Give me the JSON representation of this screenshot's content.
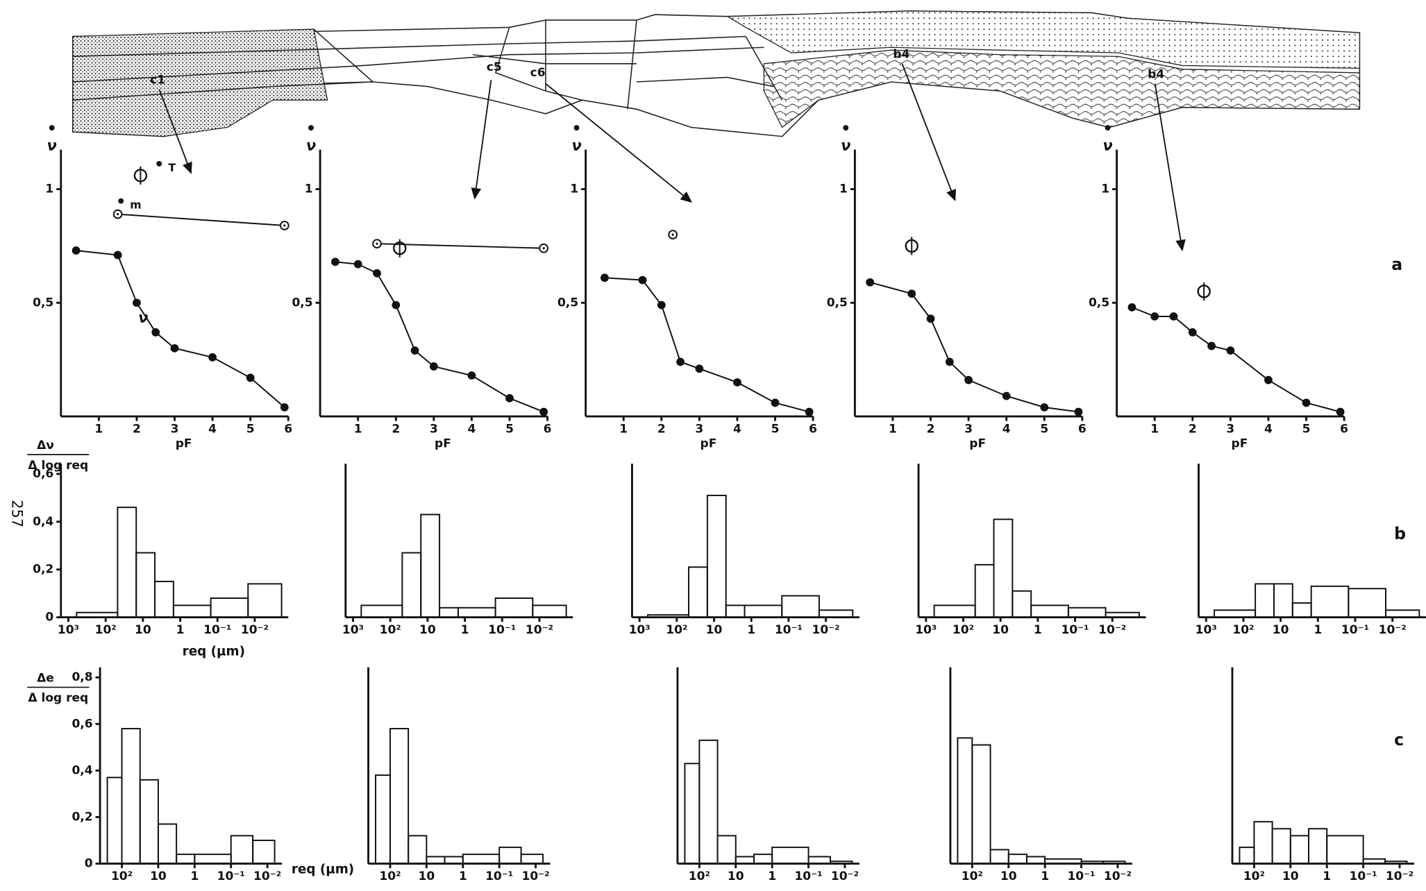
{
  "profile": {
    "labels": [
      "c1",
      "c5",
      "c6",
      "b4",
      "b4"
    ]
  },
  "panel_letters": [
    "a",
    "b",
    "c"
  ],
  "page_number": "257",
  "chart_data": [
    {
      "type": "line",
      "ylabel": "ν",
      "xlabel": "pF",
      "xlim": [
        0,
        6
      ],
      "ylim": [
        0,
        1.15
      ],
      "xticks": [
        1,
        2,
        3,
        4,
        5,
        6
      ],
      "yticks": [
        {
          "value": 0.5,
          "label": "0,5"
        },
        1
      ],
      "series": [
        {
          "x": [
            0.4,
            1.5,
            2,
            2.5,
            3,
            4,
            5,
            5.9
          ],
          "values": [
            0.73,
            0.71,
            0.5,
            0.37,
            0.3,
            0.26,
            0.17,
            0.04
          ],
          "color": "#111",
          "marker": "filled",
          "connected": true
        },
        {
          "x": [
            1.5,
            5.9
          ],
          "values": [
            0.89,
            0.84
          ],
          "color": "#111",
          "marker": "open",
          "connected": true
        },
        {
          "x": [
            2.1
          ],
          "values": [
            1.06
          ],
          "color": "#111",
          "marker": "large-open",
          "connected": false
        }
      ],
      "annotations": [
        "ν",
        "T",
        "m"
      ]
    },
    {
      "type": "line",
      "ylabel": "ν",
      "xlabel": "pF",
      "xlim": [
        0,
        6
      ],
      "ylim": [
        0,
        1.15
      ],
      "xticks": [
        1,
        2,
        3,
        4,
        5,
        6
      ],
      "yticks": [
        {
          "value": 0.5,
          "label": "0,5"
        },
        1
      ],
      "series": [
        {
          "x": [
            0.4,
            1,
            1.5,
            2,
            2.5,
            3,
            4,
            5,
            5.9
          ],
          "values": [
            0.68,
            0.67,
            0.63,
            0.49,
            0.29,
            0.22,
            0.18,
            0.08,
            0.02
          ],
          "color": "#111",
          "marker": "filled",
          "connected": true
        },
        {
          "x": [
            1.5,
            5.9
          ],
          "values": [
            0.76,
            0.74
          ],
          "color": "#111",
          "marker": "open",
          "connected": true
        },
        {
          "x": [
            2.1
          ],
          "values": [
            0.74
          ],
          "color": "#111",
          "marker": "large-open",
          "connected": false
        }
      ]
    },
    {
      "type": "line",
      "ylabel": "ν",
      "xlabel": "pF",
      "xlim": [
        0,
        6
      ],
      "ylim": [
        0,
        1.15
      ],
      "xticks": [
        1,
        2,
        3,
        4,
        5,
        6
      ],
      "yticks": [
        {
          "value": 0.5,
          "label": "0,5"
        },
        1
      ],
      "series": [
        {
          "x": [
            0.5,
            1.5,
            2,
            2.5,
            3,
            4,
            5,
            5.9
          ],
          "values": [
            0.61,
            0.6,
            0.49,
            0.24,
            0.21,
            0.15,
            0.06,
            0.02
          ],
          "color": "#111",
          "marker": "filled",
          "connected": true
        },
        {
          "x": [
            2.3
          ],
          "values": [
            0.8
          ],
          "color": "#111",
          "marker": "open",
          "connected": false
        }
      ]
    },
    {
      "type": "line",
      "ylabel": "ν",
      "xlabel": "pF",
      "xlim": [
        0,
        6
      ],
      "ylim": [
        0,
        1.15
      ],
      "xticks": [
        1,
        2,
        3,
        4,
        5,
        6
      ],
      "yticks": [
        {
          "value": 0.5,
          "label": "0,5"
        },
        1
      ],
      "series": [
        {
          "x": [
            0.4,
            1.5,
            2,
            2.5,
            3,
            4,
            5,
            5.9
          ],
          "values": [
            0.59,
            0.54,
            0.43,
            0.24,
            0.16,
            0.09,
            0.04,
            0.02
          ],
          "color": "#111",
          "marker": "filled",
          "connected": true
        },
        {
          "x": [
            1.5
          ],
          "values": [
            0.75
          ],
          "color": "#111",
          "marker": "large-open",
          "connected": false
        }
      ]
    },
    {
      "type": "line",
      "ylabel": "ν",
      "xlabel": "pF",
      "xlim": [
        0,
        6
      ],
      "ylim": [
        0,
        1.15
      ],
      "xticks": [
        1,
        2,
        3,
        4,
        5,
        6
      ],
      "yticks": [
        {
          "value": 0.5,
          "label": "0,5"
        },
        1
      ],
      "series": [
        {
          "x": [
            0.4,
            1,
            1.5,
            2,
            2.5,
            3,
            4,
            5,
            5.9
          ],
          "values": [
            0.48,
            0.44,
            0.44,
            0.37,
            0.31,
            0.29,
            0.16,
            0.06,
            0.02
          ],
          "color": "#111",
          "marker": "filled",
          "connected": true
        },
        {
          "x": [
            2.3
          ],
          "values": [
            0.55
          ],
          "color": "#111",
          "marker": "large-open",
          "connected": false
        }
      ]
    },
    {
      "type": "histogram",
      "ylabel": [
        "Δν",
        "Δ log req"
      ],
      "xlabel": "req (µm)",
      "xlim": [
        3.2,
        -2.9
      ],
      "ylim": [
        0,
        0.62
      ],
      "xticks": [
        {
          "value": 3,
          "label": "10³"
        },
        {
          "value": 2,
          "label": "10²"
        },
        {
          "value": 1,
          "label": "10"
        },
        {
          "value": 0,
          "label": "1"
        },
        {
          "value": -1,
          "label": "10⁻¹"
        },
        {
          "value": -2,
          "label": "10⁻²"
        }
      ],
      "yticks": [
        0,
        {
          "value": 0.2,
          "label": "0,2"
        },
        {
          "value": 0.4,
          "label": "0,4"
        },
        {
          "value": 0.6,
          "label": "0,6"
        }
      ],
      "bins": [
        2.78,
        1.68,
        1.18,
        0.68,
        0.18,
        -0.82,
        -1.82,
        -2.72
      ],
      "values": [
        0.02,
        0.46,
        0.27,
        0.15,
        0.05,
        0.08,
        0.14
      ],
      "color": "#111"
    },
    {
      "type": "histogram",
      "xlim": [
        3.2,
        -2.9
      ],
      "ylim": [
        0,
        0.62
      ],
      "xticks": [
        {
          "value": 3,
          "label": "10³"
        },
        {
          "value": 2,
          "label": "10²"
        },
        {
          "value": 1,
          "label": "10"
        },
        {
          "value": 0,
          "label": "1"
        },
        {
          "value": -1,
          "label": "10⁻¹"
        },
        {
          "value": -2,
          "label": "10⁻²"
        }
      ],
      "bins": [
        2.78,
        1.68,
        1.18,
        0.68,
        0.18,
        -0.82,
        -1.82,
        -2.72
      ],
      "values": [
        0.05,
        0.27,
        0.43,
        0.04,
        0.04,
        0.08,
        0.05
      ],
      "color": "#111"
    },
    {
      "type": "histogram",
      "xlim": [
        3.2,
        -2.9
      ],
      "ylim": [
        0,
        0.62
      ],
      "xticks": [
        {
          "value": 3,
          "label": "10³"
        },
        {
          "value": 2,
          "label": "10²"
        },
        {
          "value": 1,
          "label": "10"
        },
        {
          "value": 0,
          "label": "1"
        },
        {
          "value": -1,
          "label": "10⁻¹"
        },
        {
          "value": -2,
          "label": "10⁻²"
        }
      ],
      "bins": [
        2.78,
        1.68,
        1.18,
        0.68,
        0.18,
        -0.82,
        -1.82,
        -2.72
      ],
      "values": [
        0.01,
        0.21,
        0.51,
        0.05,
        0.05,
        0.09,
        0.03
      ],
      "color": "#111"
    },
    {
      "type": "histogram",
      "xlim": [
        3.2,
        -2.9
      ],
      "ylim": [
        0,
        0.62
      ],
      "xticks": [
        {
          "value": 3,
          "label": "10³"
        },
        {
          "value": 2,
          "label": "10²"
        },
        {
          "value": 1,
          "label": "10"
        },
        {
          "value": 0,
          "label": "1"
        },
        {
          "value": -1,
          "label": "10⁻¹"
        },
        {
          "value": -2,
          "label": "10⁻²"
        }
      ],
      "bins": [
        2.78,
        1.68,
        1.18,
        0.68,
        0.18,
        -0.82,
        -1.82,
        -2.72
      ],
      "values": [
        0.05,
        0.22,
        0.41,
        0.11,
        0.05,
        0.04,
        0.02
      ],
      "color": "#111"
    },
    {
      "type": "histogram",
      "xlim": [
        3.2,
        -2.9
      ],
      "ylim": [
        0,
        0.62
      ],
      "xticks": [
        {
          "value": 3,
          "label": "10³"
        },
        {
          "value": 2,
          "label": "10²"
        },
        {
          "value": 1,
          "label": "10"
        },
        {
          "value": 0,
          "label": "1"
        },
        {
          "value": -1,
          "label": "10⁻¹"
        },
        {
          "value": -2,
          "label": "10⁻²"
        }
      ],
      "bins": [
        2.78,
        1.68,
        1.18,
        0.68,
        0.18,
        -0.82,
        -1.82,
        -2.72
      ],
      "values": [
        0.03,
        0.14,
        0.14,
        0.06,
        0.13,
        0.12,
        0.03
      ],
      "color": "#111"
    },
    {
      "type": "histogram",
      "ylabel": [
        "Δe",
        "Δ log req"
      ],
      "xlabel": "req (µm)",
      "xlim": [
        2.6,
        -2.4
      ],
      "ylim": [
        0,
        0.82
      ],
      "xticks": [
        {
          "value": 2,
          "label": "10²"
        },
        {
          "value": 1,
          "label": "10"
        },
        {
          "value": 0,
          "label": "1"
        },
        {
          "value": -1,
          "label": "10⁻¹"
        },
        {
          "value": -2,
          "label": "10⁻²"
        }
      ],
      "yticks": [
        0,
        {
          "value": 0.2,
          "label": "0,2"
        },
        {
          "value": 0.4,
          "label": "0,4"
        },
        {
          "value": 0.6,
          "label": "0,6"
        },
        {
          "value": 0.8,
          "label": "0,8"
        }
      ],
      "bins": [
        2.4,
        2.0,
        1.5,
        1.0,
        0.5,
        0.0,
        -1.0,
        -1.6,
        -2.2
      ],
      "values": [
        0.37,
        0.58,
        0.36,
        0.17,
        0.04,
        0.04,
        0.12,
        0.1
      ],
      "color": "#111"
    },
    {
      "type": "histogram",
      "xlim": [
        2.6,
        -2.4
      ],
      "ylim": [
        0,
        0.82
      ],
      "xticks": [
        {
          "value": 2,
          "label": "10²"
        },
        {
          "value": 1,
          "label": "10"
        },
        {
          "value": 0,
          "label": "1"
        },
        {
          "value": -1,
          "label": "10⁻¹"
        },
        {
          "value": -2,
          "label": "10⁻²"
        }
      ],
      "bins": [
        2.4,
        2.0,
        1.5,
        1.0,
        0.5,
        0.0,
        -1.0,
        -1.6,
        -2.2
      ],
      "values": [
        0.38,
        0.58,
        0.12,
        0.03,
        0.03,
        0.04,
        0.07,
        0.04
      ],
      "color": "#111"
    },
    {
      "type": "histogram",
      "xlim": [
        2.6,
        -2.4
      ],
      "ylim": [
        0,
        0.82
      ],
      "xticks": [
        {
          "value": 2,
          "label": "10²"
        },
        {
          "value": 1,
          "label": "10"
        },
        {
          "value": 0,
          "label": "1"
        },
        {
          "value": -1,
          "label": "10⁻¹"
        },
        {
          "value": -2,
          "label": "10⁻²"
        }
      ],
      "bins": [
        2.4,
        2.0,
        1.5,
        1.0,
        0.5,
        0.0,
        -1.0,
        -1.6,
        -2.2
      ],
      "values": [
        0.43,
        0.53,
        0.12,
        0.03,
        0.04,
        0.07,
        0.03,
        0.01
      ],
      "color": "#111"
    },
    {
      "type": "histogram",
      "xlim": [
        2.6,
        -2.4
      ],
      "ylim": [
        0,
        0.82
      ],
      "xticks": [
        {
          "value": 2,
          "label": "10²"
        },
        {
          "value": 1,
          "label": "10"
        },
        {
          "value": 0,
          "label": "1"
        },
        {
          "value": -1,
          "label": "10⁻¹"
        },
        {
          "value": -2,
          "label": "10⁻²"
        }
      ],
      "bins": [
        2.4,
        2.0,
        1.5,
        1.0,
        0.5,
        0.0,
        -1.0,
        -1.6,
        -2.2
      ],
      "values": [
        0.54,
        0.51,
        0.06,
        0.04,
        0.03,
        0.02,
        0.01,
        0.01
      ],
      "color": "#111"
    },
    {
      "type": "histogram",
      "xlim": [
        2.6,
        -2.4
      ],
      "ylim": [
        0,
        0.82
      ],
      "xticks": [
        {
          "value": 2,
          "label": "10²"
        },
        {
          "value": 1,
          "label": "10"
        },
        {
          "value": 0,
          "label": "1"
        },
        {
          "value": -1,
          "label": "10⁻¹"
        },
        {
          "value": -2,
          "label": "10⁻²"
        }
      ],
      "bins": [
        2.4,
        2.0,
        1.5,
        1.0,
        0.5,
        0.0,
        -1.0,
        -1.6,
        -2.2
      ],
      "values": [
        0.07,
        0.18,
        0.15,
        0.12,
        0.15,
        0.12,
        0.02,
        0.01
      ],
      "color": "#111"
    }
  ]
}
